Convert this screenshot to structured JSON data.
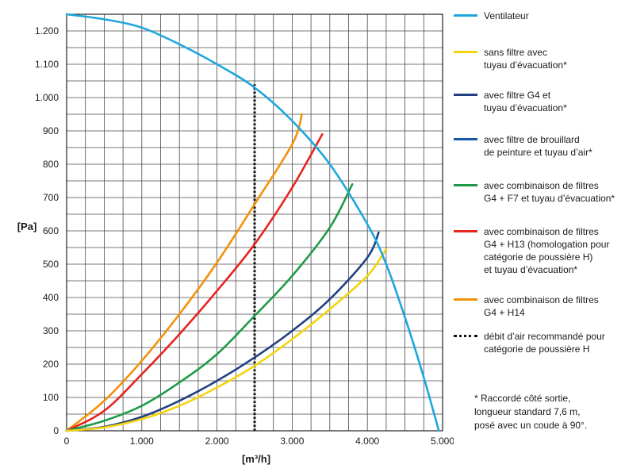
{
  "chart_data": {
    "type": "line",
    "xlabel": "[m³/h]",
    "ylabel": "[Pa]",
    "xlim": [
      0,
      5000
    ],
    "ylim": [
      0,
      1250
    ],
    "x_ticks": [
      0,
      1000,
      2000,
      3000,
      4000,
      5000
    ],
    "x_tick_labels": [
      "0",
      "1.000",
      "2.000",
      "3.000",
      "4.000",
      "5.000"
    ],
    "y_ticks": [
      0,
      100,
      200,
      300,
      400,
      500,
      600,
      700,
      800,
      900,
      1000,
      1100,
      1200
    ],
    "y_tick_labels": [
      "0",
      "100",
      "200",
      "300",
      "400",
      "500",
      "600",
      "700",
      "800",
      "900",
      "1.000",
      "1.100",
      "1.200"
    ],
    "grid": true,
    "legend_position": "right",
    "series": [
      {
        "name": "Ventilateur",
        "color": "#1ea7dd",
        "x": [
          0,
          500,
          1000,
          1500,
          2000,
          2500,
          3000,
          3500,
          4000,
          4250,
          4500,
          4750,
          4950
        ],
        "y": [
          1250,
          1235,
          1210,
          1160,
          1100,
          1030,
          930,
          800,
          620,
          500,
          340,
          160,
          0
        ]
      },
      {
        "name": "sans filtre avec\ntuyau d’évacuation*",
        "color": "#f4d40f",
        "x": [
          0,
          500,
          1000,
          1500,
          2000,
          2500,
          3000,
          3500,
          4000,
          4250
        ],
        "y": [
          0,
          10,
          35,
          75,
          130,
          195,
          275,
          365,
          465,
          545
        ]
      },
      {
        "name": "avec filtre G4 et\ntuyau d’évacuation*",
        "color": "#233f82",
        "x": [
          0,
          500,
          1000,
          1500,
          2000,
          2500,
          3000,
          3500,
          4000,
          4150
        ],
        "y": [
          0,
          12,
          42,
          90,
          150,
          220,
          300,
          395,
          520,
          595
        ]
      },
      {
        "name": "avec filtre de brouillard\nde peinture et tuyau d’air*",
        "color": "#1556a6",
        "x": [],
        "y": []
      },
      {
        "name": "avec combinaison de filtres\nG4 + F7 et tuyau d’évacuation*",
        "color": "#1e9a47",
        "x": [
          0,
          500,
          1000,
          1500,
          2000,
          2500,
          3000,
          3500,
          3800
        ],
        "y": [
          0,
          30,
          75,
          145,
          230,
          345,
          465,
          610,
          740
        ]
      },
      {
        "name": "avec combinaison de filtres\nG4 + H13 (homologation pour\ncatégorie de poussière H)\net tuyau d’évacuation*",
        "color": "#e52521",
        "x": [
          0,
          500,
          1000,
          1500,
          2000,
          2500,
          3000,
          3400
        ],
        "y": [
          0,
          60,
          170,
          290,
          420,
          560,
          730,
          890
        ]
      },
      {
        "name": "avec combinaison de filtres\nG4 + H14",
        "color": "#f29108",
        "x": [
          0,
          500,
          1000,
          1500,
          2000,
          2500,
          3000,
          3130
        ],
        "y": [
          0,
          90,
          210,
          350,
          505,
          680,
          860,
          950
        ]
      },
      {
        "name": "débit d’air recommandé pour\ncatégorie de poussière H",
        "color": "#111111",
        "style": "dotted",
        "x": [
          2500,
          2500
        ],
        "y": [
          0,
          1040
        ]
      }
    ]
  },
  "footnote": "*  Raccordé côté sortie,\n    longueur standard 7,6 m,\n    posé avec un coude à 90°."
}
